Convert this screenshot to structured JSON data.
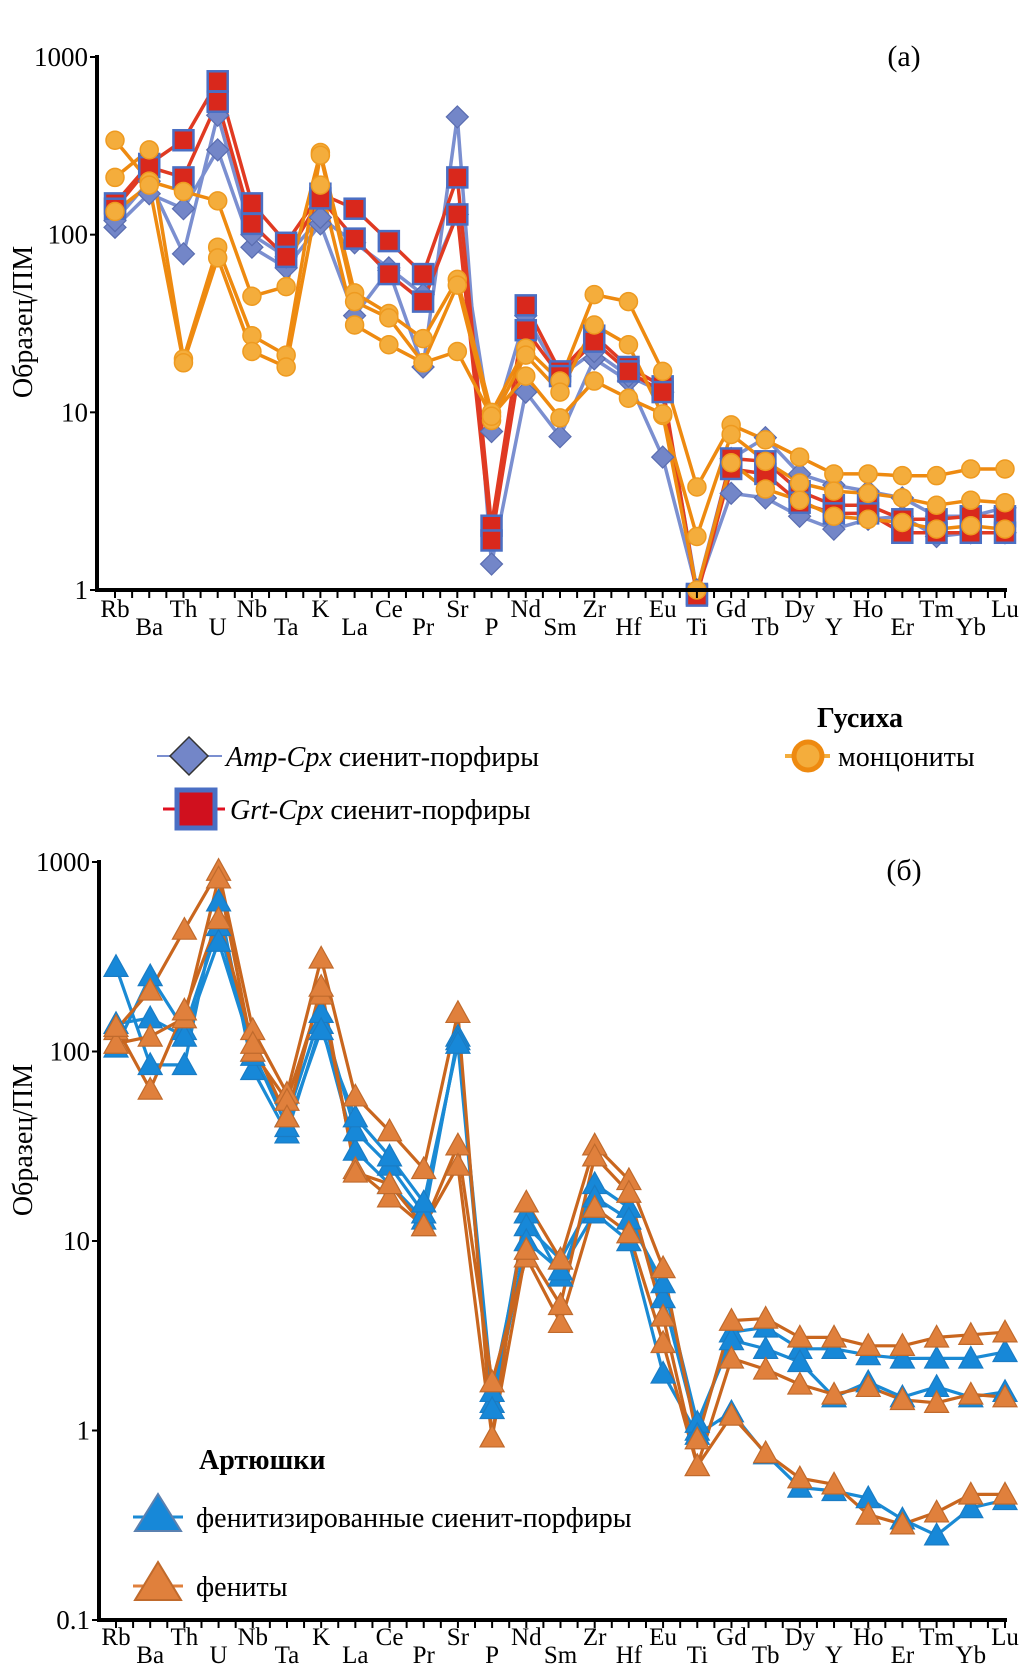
{
  "chart_data": [
    {
      "id": "a",
      "type": "line",
      "panel_label": "(a)",
      "title": "",
      "ylabel": "Образец/ПМ",
      "xlabel": "",
      "yscale": "log",
      "ylim": [
        1,
        1000
      ],
      "yticks": [
        1,
        10,
        100,
        1000
      ],
      "ytick_labels": [
        "1",
        "10",
        "100",
        "1000"
      ],
      "grid": false,
      "categories": [
        "Rb",
        "Ba",
        "Th",
        "U",
        "Nb",
        "Ta",
        "K",
        "La",
        "Ce",
        "Pr",
        "Sr",
        "P",
        "Nd",
        "Sm",
        "Zr",
        "Hf",
        "Eu",
        "Ti",
        "Gd",
        "Tb",
        "Dy",
        "Y",
        "Ho",
        "Er",
        "Tm",
        "Yb",
        "Lu"
      ],
      "legend": {
        "placement": "below",
        "group_title": "Гусиха",
        "entries": [
          {
            "series_group": "amp",
            "italic_part": "Amp-Cpx",
            "text": " сиенит-порфиры"
          },
          {
            "series_group": "grt",
            "italic_part": "Grt-Cpx",
            "text": " сиенит-порфиры"
          },
          {
            "series_group": "mon",
            "italic_part": "",
            "text": "монцониты"
          }
        ]
      },
      "series_styles": {
        "amp": {
          "marker": "diamond",
          "line": "#7b8fd0",
          "fill": "#7386c8",
          "stroke": "#5a6db0"
        },
        "grt": {
          "marker": "square",
          "line": "#e03a22",
          "fill": "#d9281c",
          "stroke": "#4a6fc4"
        },
        "mon": {
          "marker": "circle",
          "line": "#ee8a10",
          "fill": "#f4ad3c",
          "stroke": "#ee9a20"
        }
      },
      "series": [
        {
          "name": "Amp-Cpx 1",
          "group": "amp",
          "values": [
            110,
            170,
            140,
            300,
            85,
            65,
            115,
            35,
            63,
            18,
            460,
            1.4,
            13,
            7.3,
            20,
            15,
            5.6,
            1.0,
            3.5,
            3.3,
            2.6,
            2.2,
            2.5,
            2.6,
            2.0,
            2.1,
            2.1
          ]
        },
        {
          "name": "Amp-Cpx 2",
          "group": "amp",
          "values": [
            120,
            200,
            78,
            470,
            100,
            75,
            125,
            90,
            65,
            46,
            130,
            7.8,
            35,
            16,
            22,
            16,
            13,
            1.0,
            5.5,
            7.2,
            4.5,
            3.9,
            3.6,
            3.3,
            2.6,
            2.6,
            2.9
          ]
        },
        {
          "name": "Grt-Cpx 1",
          "group": "grt",
          "values": [
            150,
            250,
            340,
            730,
            150,
            90,
            170,
            140,
            92,
            60,
            210,
            2.3,
            40,
            17,
            27,
            18,
            14,
            0.95,
            5.5,
            5.3,
            3.6,
            3.0,
            3.0,
            2.5,
            2.5,
            2.6,
            2.6
          ]
        },
        {
          "name": "Grt-Cpx 2",
          "group": "grt",
          "values": [
            140,
            240,
            210,
            560,
            115,
            75,
            160,
            95,
            60,
            42,
            130,
            1.9,
            29,
            16,
            25,
            17,
            13,
            0.93,
            4.8,
            4.5,
            3.1,
            2.7,
            2.7,
            2.1,
            2.1,
            2.1,
            2.1
          ]
        },
        {
          "name": "Monzonite 1",
          "group": "mon",
          "values": [
            340,
            200,
            175,
            155,
            45,
            51,
            290,
            47,
            36,
            26,
            56,
            10,
            23,
            15,
            46,
            42,
            17,
            3.8,
            8.5,
            7.0,
            5.6,
            4.5,
            4.5,
            4.4,
            4.4,
            4.8,
            4.8
          ]
        },
        {
          "name": "Monzonite 2",
          "group": "mon",
          "values": [
            210,
            300,
            20,
            85,
            27,
            21,
            280,
            42,
            34,
            19,
            52,
            9.0,
            21,
            13,
            31,
            24,
            9.6,
            2.0,
            7.5,
            5.3,
            4.0,
            3.6,
            3.5,
            3.3,
            3.0,
            3.2,
            3.1
          ]
        },
        {
          "name": "Monzonite 3",
          "group": "mon",
          "values": [
            135,
            190,
            19,
            74,
            22,
            18,
            190,
            31,
            24,
            19,
            22,
            9.5,
            16,
            9.3,
            15,
            12,
            9.8,
            1.0,
            5.2,
            3.7,
            3.2,
            2.6,
            2.5,
            2.4,
            2.2,
            2.3,
            2.2
          ]
        }
      ]
    },
    {
      "id": "b",
      "type": "line",
      "panel_label": "(б)",
      "title": "",
      "ylabel": "Образец/ПМ",
      "xlabel": "",
      "yscale": "log",
      "ylim": [
        0.1,
        1000
      ],
      "yticks": [
        0.1,
        1,
        10,
        100,
        1000
      ],
      "ytick_labels": [
        "0.1",
        "1",
        "10",
        "100",
        "1000"
      ],
      "grid": false,
      "categories": [
        "Rb",
        "Ba",
        "Th",
        "U",
        "Nb",
        "Ta",
        "K",
        "La",
        "Ce",
        "Pr",
        "Sr",
        "P",
        "Nd",
        "Sm",
        "Zr",
        "Hf",
        "Eu",
        "Ti",
        "Gd",
        "Tb",
        "Dy",
        "Y",
        "Ho",
        "Er",
        "Tm",
        "Yb",
        "Lu"
      ],
      "legend": {
        "placement": "bottom-left",
        "group_title": "Артюшки",
        "entries": [
          {
            "series_group": "fen_sp",
            "italic_part": "",
            "text": "фенитизированные сиенит-порфиры"
          },
          {
            "series_group": "fen",
            "italic_part": "",
            "text": "фениты"
          }
        ]
      },
      "series_styles": {
        "fen_sp": {
          "marker": "triangle",
          "line": "#1a8ad4",
          "fill": "#1788d8",
          "stroke": "#1a7cc4"
        },
        "fen": {
          "marker": "triangle",
          "line": "#c9661e",
          "fill": "#e0803c",
          "stroke": "#c06a2c"
        }
      },
      "series": [
        {
          "name": "Fenitized syenite-porphyry 1",
          "group": "fen_sp",
          "values": [
            280,
            85,
            85,
            620,
            80,
            37,
            140,
            30,
            20,
            13,
            120,
            1.4,
            14,
            6.5,
            20,
            15,
            5.0,
            1.0,
            3.3,
            3.5,
            2.7,
            2.7,
            2.5,
            2.4,
            2.4,
            2.4,
            2.6
          ]
        },
        {
          "name": "Fenitized syenite-porphyry 2",
          "group": "fen_sp",
          "values": [
            105,
            250,
            130,
            460,
            95,
            45,
            160,
            38,
            25,
            14,
            115,
            1.6,
            12,
            8.0,
            17,
            13,
            6.0,
            1.1,
            3.0,
            2.7,
            2.3,
            1.5,
            1.8,
            1.5,
            1.7,
            1.5,
            1.6
          ]
        },
        {
          "name": "Fenitized syenite-porphyry 3",
          "group": "fen_sp",
          "values": [
            140,
            150,
            120,
            380,
            100,
            40,
            130,
            45,
            28,
            16,
            110,
            1.3,
            10,
            7.0,
            14,
            10,
            2.0,
            0.95,
            1.25,
            0.75,
            0.5,
            0.48,
            0.44,
            0.34,
            0.28,
            0.39,
            0.43
          ]
        },
        {
          "name": "Fenite 1",
          "group": "fen",
          "values": [
            130,
            210,
            440,
            900,
            130,
            60,
            310,
            58,
            38,
            24,
            160,
            0.92,
            16,
            8.0,
            32,
            21,
            7.2,
            0.9,
            3.8,
            3.9,
            3.1,
            3.1,
            2.8,
            2.8,
            3.1,
            3.2,
            3.3
          ]
        },
        {
          "name": "Fenite 2",
          "group": "fen",
          "values": [
            110,
            120,
            150,
            820,
            100,
            55,
            200,
            24,
            17,
            12,
            32,
            1.8,
            8.2,
            3.7,
            15,
            11,
            2.9,
            0.65,
            2.4,
            2.1,
            1.75,
            1.55,
            1.7,
            1.45,
            1.4,
            1.55,
            1.5
          ]
        },
        {
          "name": "Fenite 3",
          "group": "fen",
          "values": [
            135,
            63,
            165,
            500,
            110,
            45,
            220,
            23,
            20,
            12,
            25,
            0.92,
            9.0,
            4.6,
            28,
            18,
            4.0,
            0.65,
            1.2,
            0.76,
            0.56,
            0.52,
            0.36,
            0.32,
            0.37,
            0.46,
            0.46
          ]
        }
      ]
    }
  ]
}
